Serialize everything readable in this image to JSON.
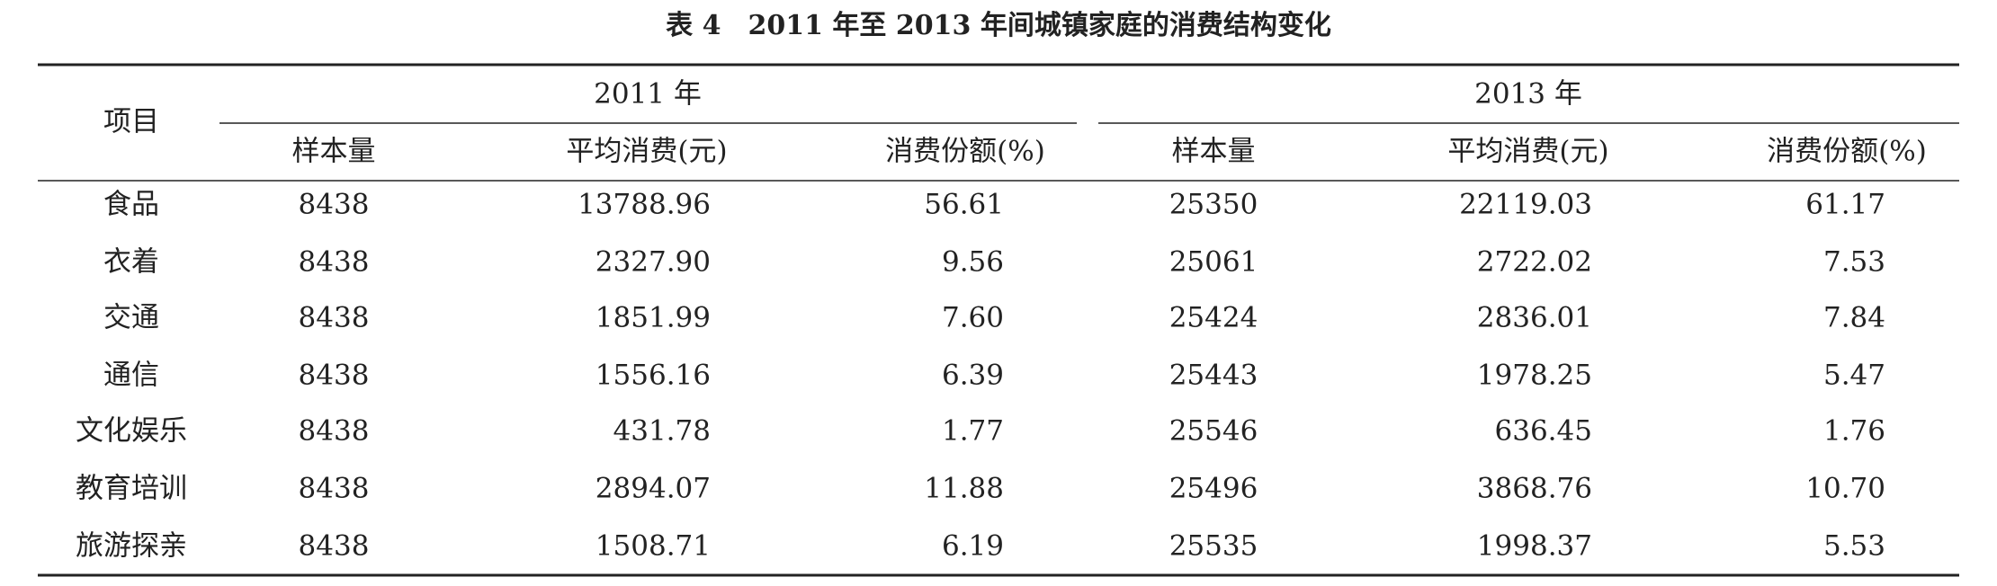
{
  "title": "表 4　2011 年至 2013 年间城镇家庭的消费结构变化",
  "table": {
    "item_header": "项目",
    "groups": [
      "2011 年",
      "2013 年"
    ],
    "columns": [
      "样本量",
      "平均消费(元)",
      "消费份额(%)",
      "样本量",
      "平均消费(元)",
      "消费份额(%)"
    ],
    "rows": [
      [
        "食品",
        "8438",
        "13788.96",
        "56.61",
        "25350",
        "22119.03",
        "61.17"
      ],
      [
        "衣着",
        "8438",
        "2327.90",
        "9.56",
        "25061",
        "2722.02",
        "7.53"
      ],
      [
        "交通",
        "8438",
        "1851.99",
        "7.60",
        "25424",
        "2836.01",
        "7.84"
      ],
      [
        "通信",
        "8438",
        "1556.16",
        "6.39",
        "25443",
        "1978.25",
        "5.47"
      ],
      [
        "文化娱乐",
        "8438",
        "431.78",
        "1.77",
        "25546",
        "636.45",
        "1.76"
      ],
      [
        "教育培训",
        "8438",
        "2894.07",
        "11.88",
        "25496",
        "3868.76",
        "10.70"
      ],
      [
        "旅游探亲",
        "8438",
        "1508.71",
        "6.19",
        "25535",
        "1998.37",
        "5.53"
      ]
    ]
  }
}
